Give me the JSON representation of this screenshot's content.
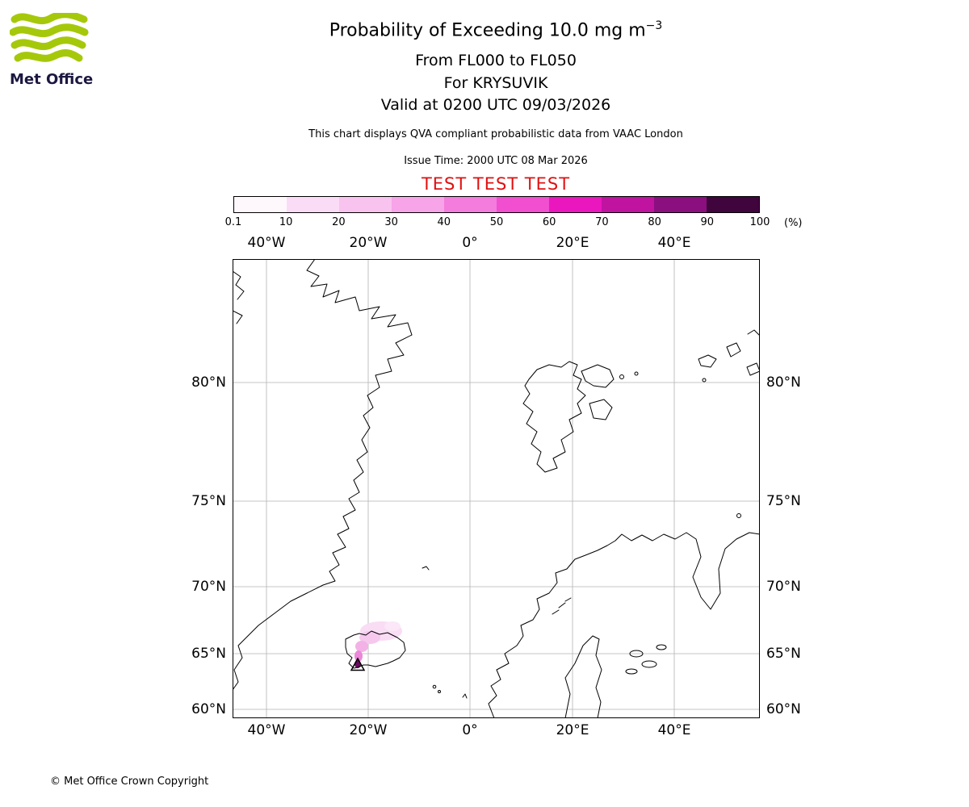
{
  "logo": {
    "brand": "Met Office",
    "wave_color": "#A6C80A",
    "text_color": "#1c1840"
  },
  "header": {
    "title_main": "Probability of Exceeding 10.0 mg m",
    "title_sup": "−3",
    "line2": "From FL000 to FL050",
    "line3": "For KRYSUVIK",
    "line4": "Valid at 0200 UTC 09/03/2026",
    "description": "This chart displays QVA compliant probabilistic data from VAAC London",
    "issue_time": "Issue Time: 2000 UTC 08 Mar 2026",
    "test_banner": "TEST TEST TEST",
    "test_color": "#e01010"
  },
  "colorbar": {
    "unit_label": "(%)",
    "tick_labels": [
      "0.1",
      "10",
      "20",
      "30",
      "40",
      "50",
      "60",
      "70",
      "80",
      "90",
      "100"
    ],
    "segment_colors": [
      "#fef8fd",
      "#fbdcf6",
      "#f9c3ef",
      "#f7a4e8",
      "#f47cdd",
      "#f14ed0",
      "#ea17be",
      "#c013a0",
      "#8c0f7f",
      "#40053d"
    ]
  },
  "map": {
    "top_ticks": [
      "40°W",
      "20°W",
      "0°",
      "20°E",
      "40°E"
    ],
    "bottom_ticks": [
      "40°W",
      "20°W",
      "0°",
      "20°E",
      "40°E"
    ],
    "left_ticks": [
      "80°N",
      "75°N",
      "70°N",
      "65°N",
      "60°N"
    ],
    "right_ticks": [
      "80°N",
      "75°N",
      "70°N",
      "65°N",
      "60°N"
    ]
  },
  "footer": {
    "copyright": "© Met Office Crown Copyright"
  },
  "chart_data": {
    "type": "heatmap",
    "title": "Probability of Exceeding 10.0 mg m⁻³",
    "layer": "From FL000 to FL050",
    "volcano": "KRYSUVIK",
    "valid_time": "Valid at 0200 UTC 09/03/2026",
    "issue_time": "2000 UTC 08 Mar 2026",
    "source": "VAAC London (QVA compliant probabilistic data)",
    "status_banner": "TEST TEST TEST",
    "legend_units": "(%)",
    "colorbar_percent_bounds": [
      0.1,
      10,
      20,
      30,
      40,
      50,
      60,
      70,
      80,
      90,
      100
    ],
    "x_ticks": [
      "40°W",
      "20°W",
      "0°",
      "20°E",
      "40°E"
    ],
    "y_ticks": [
      "80°N",
      "75°N",
      "70°N",
      "65°N",
      "60°N"
    ],
    "map_extent": {
      "lon_min": "≈46°W",
      "lon_max": "≈56°E",
      "lat_min": "≈59°N",
      "lat_max": "≈85°N"
    },
    "projection_note": "latitude gridline spacing widens poleward (Mercator-like); grid every 20° lon and 5° lat",
    "features": {
      "volcano_marker": {
        "symbol": "open triangle",
        "approx_position": "≈63.9°N 22°W, Reykjanes peninsula, Iceland"
      },
      "ash_plume": {
        "extent": "small plume over SW Iceland spreading across northern Iceland toward the NE (≈67°N 18°W)",
        "probabilities": "dark purple core ≈90–100% at the source, fading through pinks to ≈10–20% pale pink downwind"
      },
      "coastlines_visible": [
        "East Greenland",
        "Iceland",
        "Jan Mayen",
        "Faroe Islands",
        "Svalbard",
        "Franz Josef Land",
        "Norway",
        "Scandinavia with Gulf of Bothnia",
        "White Sea / Kola coast"
      ]
    }
  }
}
